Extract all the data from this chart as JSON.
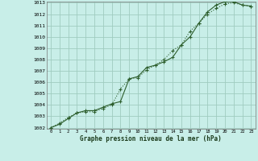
{
  "title": "Graphe pression niveau de la mer (hPa)",
  "bg_color": "#c8eee8",
  "grid_color": "#a0ccc0",
  "line_color": "#2d5e2d",
  "x_ticks": [
    0,
    1,
    2,
    3,
    4,
    5,
    6,
    7,
    8,
    9,
    10,
    11,
    12,
    13,
    14,
    15,
    16,
    17,
    18,
    19,
    20,
    21,
    22,
    23
  ],
  "y_min": 1002,
  "y_max": 1013,
  "y_ticks": [
    1002,
    1003,
    1004,
    1005,
    1006,
    1007,
    1008,
    1009,
    1010,
    1011,
    1012,
    1013
  ],
  "series1": [
    1002.0,
    1002.3,
    1002.8,
    1003.3,
    1003.5,
    1003.5,
    1003.8,
    1004.1,
    1004.3,
    1006.3,
    1006.5,
    1007.3,
    1007.5,
    1007.8,
    1008.2,
    1009.3,
    1010.0,
    1011.2,
    1012.2,
    1012.8,
    1013.1,
    1013.1,
    1012.8,
    1012.7
  ],
  "series2": [
    1002.0,
    1002.4,
    1002.9,
    1003.3,
    1003.4,
    1003.4,
    1003.7,
    1004.0,
    1005.4,
    1006.3,
    1006.4,
    1007.1,
    1007.5,
    1008.0,
    1008.8,
    1009.3,
    1010.5,
    1011.2,
    1012.0,
    1012.5,
    1012.9,
    1013.0,
    1012.8,
    1012.7
  ]
}
